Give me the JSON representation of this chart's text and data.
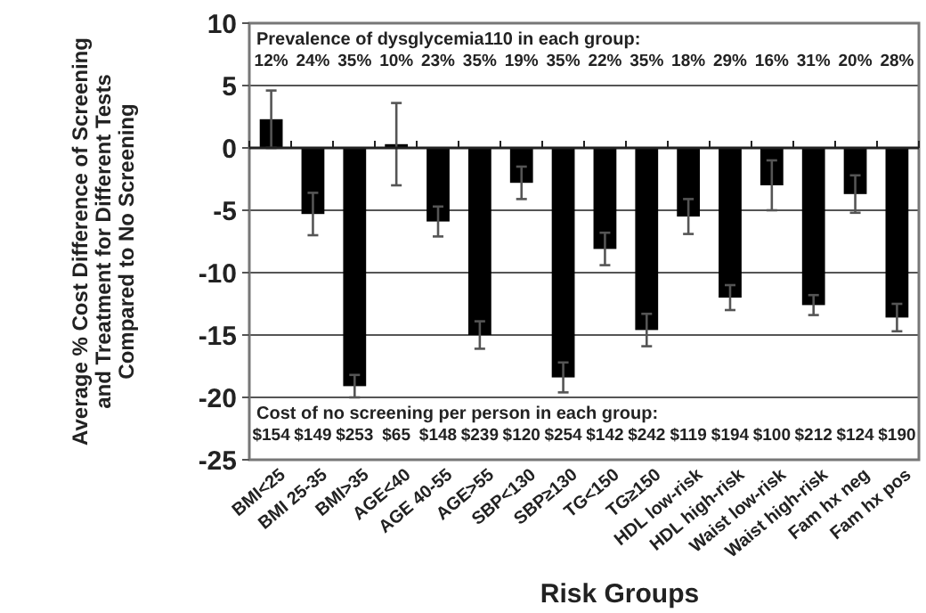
{
  "chart_data": {
    "type": "bar",
    "xlabel": "Risk Groups",
    "ylabel": "Average % Cost Difference of Screening and Treatment for Different Tests Compared to No Screening",
    "categories": [
      "BMI<25",
      "BMI 25-35",
      "BMI>35",
      "AGE<40",
      "AGE 40-55",
      "AGE>55",
      "SBP<130",
      "SBP≥130",
      "TG<150",
      "TG≥150",
      "HDL low-risk",
      "HDL high-risk",
      "Waist low-risk",
      "Waist high-risk",
      "Fam hx neg",
      "Fam hx pos"
    ],
    "values": [
      2.3,
      -5.3,
      -19.1,
      0.3,
      -5.9,
      -15.0,
      -2.8,
      -18.4,
      -8.1,
      -14.6,
      -5.5,
      -12.0,
      -3.0,
      -12.6,
      -3.7,
      -13.6
    ],
    "errors": [
      2.3,
      1.7,
      0.9,
      3.3,
      1.2,
      1.1,
      1.3,
      1.2,
      1.3,
      1.3,
      1.4,
      1.0,
      2.0,
      0.8,
      1.5,
      1.1
    ],
    "color": "#000000",
    "ylim": [
      -25,
      10
    ],
    "yticks": [
      -25,
      -20,
      -15,
      -10,
      -5,
      0,
      5,
      10
    ],
    "grid": "y",
    "annotations": [
      "Prevalence of dysglycemia110 in each group:",
      "12%",
      "24%",
      "35%",
      "10%",
      "23%",
      "35%",
      "19%",
      "35%",
      "22%",
      "35%",
      "18%",
      "29%",
      "16%",
      "31%",
      "20%",
      "28%",
      "Cost of no screening per person in each group:",
      "$154",
      "$149",
      "$253",
      "$65",
      "$148",
      "$239",
      "$120",
      "$254",
      "$142",
      "$242",
      "$119",
      "$194",
      "$100",
      "$212",
      "$124",
      "$190"
    ]
  }
}
